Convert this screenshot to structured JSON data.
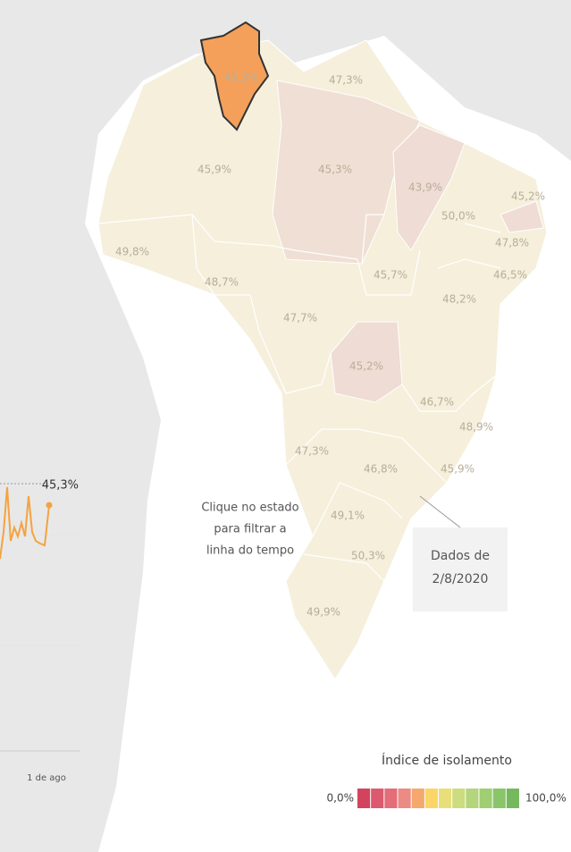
{
  "map": {
    "states": [
      {
        "name": null,
        "label": "45,3%"
      },
      {
        "name": null,
        "label": "47,3%"
      },
      {
        "name": null,
        "label": "45,9%"
      },
      {
        "name": null,
        "label": "45,3%"
      },
      {
        "name": null,
        "label": "43,9%"
      },
      {
        "name": null,
        "label": "50,0%"
      },
      {
        "name": null,
        "label": "45,2%"
      },
      {
        "name": null,
        "label": "47,8%"
      },
      {
        "name": null,
        "label": "46,5%"
      },
      {
        "name": null,
        "label": "49,8%"
      },
      {
        "name": null,
        "label": "48,7%"
      },
      {
        "name": null,
        "label": "45,7%"
      },
      {
        "name": null,
        "label": "48,2%"
      },
      {
        "name": null,
        "label": "47,7%"
      },
      {
        "name": null,
        "label": "45,2%"
      },
      {
        "name": null,
        "label": "46,7%"
      },
      {
        "name": null,
        "label": "48,9%"
      },
      {
        "name": null,
        "label": "47,3%"
      },
      {
        "name": null,
        "label": "46,8%"
      },
      {
        "name": null,
        "label": "45,9%"
      },
      {
        "name": null,
        "label": "49,1%"
      },
      {
        "name": null,
        "label": "50,3%"
      },
      {
        "name": null,
        "label": "49,9%"
      }
    ],
    "hint": [
      "Clique no estado",
      "para filtrar a",
      "linha do tempo"
    ],
    "date_note": [
      "Dados de",
      "2/8/2020"
    ]
  },
  "timeline": {
    "value_label": "45,3%",
    "x_label": "1 de ago"
  },
  "legend": {
    "title": "Índice de isolamento",
    "min": "0,0%",
    "max": "100,0%",
    "colors": [
      "#d2445e",
      "#dc5a6e",
      "#e46d7a",
      "#ec8a84",
      "#f4a86d",
      "#fbd667",
      "#e8df7a",
      "#cddc7e",
      "#b4d57c",
      "#9fce73",
      "#8ac56a",
      "#76b85e"
    ]
  }
}
